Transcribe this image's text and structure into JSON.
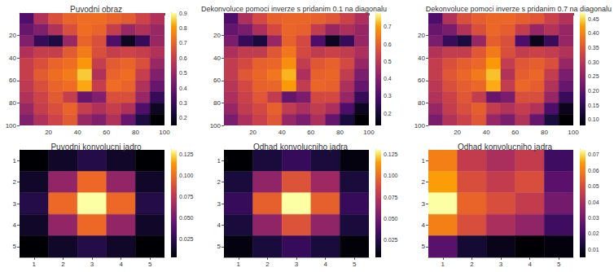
{
  "chart_data": [
    {
      "type": "heatmap",
      "title": "Puvodni obraz",
      "x": [
        5,
        15,
        25,
        35,
        45,
        55,
        65,
        75,
        85,
        95
      ],
      "y": [
        5,
        15,
        25,
        35,
        45,
        55,
        65,
        75,
        85,
        95
      ],
      "cells": [
        [
          0.35,
          0.55,
          0.65,
          0.7,
          0.72,
          0.72,
          0.7,
          0.68,
          0.62,
          0.55
        ],
        [
          0.4,
          0.45,
          0.55,
          0.65,
          0.72,
          0.7,
          0.6,
          0.5,
          0.55,
          0.5
        ],
        [
          0.45,
          0.3,
          0.25,
          0.5,
          0.7,
          0.65,
          0.35,
          0.2,
          0.3,
          0.5
        ],
        [
          0.55,
          0.6,
          0.6,
          0.68,
          0.75,
          0.65,
          0.6,
          0.62,
          0.6,
          0.55
        ],
        [
          0.6,
          0.65,
          0.7,
          0.72,
          0.8,
          0.6,
          0.68,
          0.7,
          0.65,
          0.5
        ],
        [
          0.6,
          0.68,
          0.72,
          0.75,
          0.85,
          0.55,
          0.7,
          0.72,
          0.6,
          0.45
        ],
        [
          0.58,
          0.65,
          0.7,
          0.72,
          0.82,
          0.6,
          0.72,
          0.7,
          0.55,
          0.4
        ],
        [
          0.55,
          0.62,
          0.68,
          0.6,
          0.4,
          0.45,
          0.65,
          0.65,
          0.5,
          0.3
        ],
        [
          0.5,
          0.6,
          0.65,
          0.7,
          0.6,
          0.55,
          0.6,
          0.55,
          0.35,
          0.2
        ],
        [
          0.45,
          0.55,
          0.62,
          0.68,
          0.5,
          0.45,
          0.55,
          0.4,
          0.25,
          0.15
        ]
      ],
      "xlim": [
        0,
        100
      ],
      "ylim": [
        0,
        100
      ],
      "xticks": [
        20,
        40,
        60,
        80,
        100
      ],
      "yticks": [
        20,
        40,
        60,
        80,
        100
      ],
      "clim": [
        0.15,
        0.9
      ],
      "cticks": [
        0.2,
        0.3,
        0.4,
        0.5,
        0.6,
        0.7,
        0.8,
        0.9
      ]
    },
    {
      "type": "heatmap",
      "title": "Dekonvoluce pomoci inverze s pridanim 0.1 na diagonalu",
      "x": [
        5,
        15,
        25,
        35,
        45,
        55,
        65,
        75,
        85,
        95
      ],
      "y": [
        5,
        15,
        25,
        35,
        45,
        55,
        65,
        75,
        85,
        95
      ],
      "cells": [
        [
          0.3,
          0.47,
          0.55,
          0.6,
          0.61,
          0.61,
          0.6,
          0.58,
          0.53,
          0.47
        ],
        [
          0.34,
          0.38,
          0.47,
          0.55,
          0.61,
          0.6,
          0.51,
          0.43,
          0.47,
          0.43
        ],
        [
          0.38,
          0.26,
          0.21,
          0.43,
          0.6,
          0.55,
          0.3,
          0.17,
          0.26,
          0.43
        ],
        [
          0.47,
          0.51,
          0.51,
          0.58,
          0.64,
          0.55,
          0.51,
          0.53,
          0.51,
          0.47
        ],
        [
          0.51,
          0.55,
          0.6,
          0.61,
          0.68,
          0.51,
          0.58,
          0.6,
          0.55,
          0.43
        ],
        [
          0.51,
          0.58,
          0.61,
          0.64,
          0.72,
          0.47,
          0.6,
          0.61,
          0.51,
          0.38
        ],
        [
          0.49,
          0.55,
          0.6,
          0.61,
          0.7,
          0.51,
          0.61,
          0.6,
          0.47,
          0.34
        ],
        [
          0.47,
          0.53,
          0.58,
          0.51,
          0.34,
          0.38,
          0.55,
          0.55,
          0.43,
          0.26
        ],
        [
          0.43,
          0.51,
          0.55,
          0.6,
          0.51,
          0.47,
          0.51,
          0.47,
          0.3,
          0.17
        ],
        [
          0.38,
          0.47,
          0.53,
          0.58,
          0.43,
          0.38,
          0.47,
          0.34,
          0.21,
          0.13
        ]
      ],
      "xlim": [
        0,
        100
      ],
      "ylim": [
        0,
        100
      ],
      "xticks": [
        20,
        40,
        60,
        80,
        100
      ],
      "yticks": [
        20,
        40,
        60,
        80,
        100
      ],
      "clim": [
        0.13,
        0.78
      ],
      "cticks": [
        0.2,
        0.3,
        0.4,
        0.5,
        0.6,
        0.7
      ]
    },
    {
      "type": "heatmap",
      "title": "Dekonvoluce pomoci inverze s pridanim 0.7 na diagonalu",
      "x": [
        5,
        15,
        25,
        35,
        45,
        55,
        65,
        75,
        85,
        95
      ],
      "y": [
        5,
        15,
        25,
        35,
        45,
        55,
        65,
        75,
        85,
        95
      ],
      "cells": [
        [
          0.18,
          0.29,
          0.34,
          0.36,
          0.37,
          0.37,
          0.36,
          0.35,
          0.32,
          0.29
        ],
        [
          0.21,
          0.23,
          0.29,
          0.34,
          0.37,
          0.36,
          0.31,
          0.26,
          0.29,
          0.26
        ],
        [
          0.23,
          0.16,
          0.13,
          0.26,
          0.36,
          0.34,
          0.18,
          0.1,
          0.16,
          0.26
        ],
        [
          0.29,
          0.31,
          0.31,
          0.35,
          0.39,
          0.34,
          0.31,
          0.32,
          0.31,
          0.29
        ],
        [
          0.31,
          0.34,
          0.36,
          0.37,
          0.42,
          0.31,
          0.35,
          0.36,
          0.34,
          0.26
        ],
        [
          0.31,
          0.35,
          0.37,
          0.39,
          0.44,
          0.29,
          0.36,
          0.37,
          0.31,
          0.23
        ],
        [
          0.3,
          0.34,
          0.36,
          0.37,
          0.43,
          0.31,
          0.37,
          0.36,
          0.29,
          0.21
        ],
        [
          0.29,
          0.32,
          0.35,
          0.31,
          0.21,
          0.23,
          0.34,
          0.34,
          0.26,
          0.16
        ],
        [
          0.26,
          0.31,
          0.34,
          0.36,
          0.31,
          0.29,
          0.31,
          0.29,
          0.18,
          0.1
        ],
        [
          0.23,
          0.29,
          0.32,
          0.35,
          0.26,
          0.23,
          0.29,
          0.21,
          0.13,
          0.08
        ]
      ],
      "xlim": [
        0,
        100
      ],
      "ylim": [
        0,
        100
      ],
      "xticks": [
        20,
        40,
        60,
        80,
        100
      ],
      "yticks": [
        20,
        40,
        60,
        80,
        100
      ],
      "clim": [
        0.08,
        0.47
      ],
      "cticks": [
        {
          "value": 0.1,
          "label": "0.10"
        },
        0.15,
        {
          "value": 0.2,
          "label": "0.20"
        },
        0.25,
        {
          "value": 0.3,
          "label": "0.30"
        },
        0.35,
        {
          "value": 0.4,
          "label": "0.40"
        },
        0.45
      ]
    },
    {
      "type": "heatmap",
      "title": "Puvodni konvolucni jadro",
      "x": [
        1,
        2,
        3,
        4,
        5
      ],
      "y": [
        1,
        2,
        3,
        4,
        5
      ],
      "cells": [
        [
          0.003,
          0.013,
          0.022,
          0.013,
          0.003
        ],
        [
          0.013,
          0.06,
          0.098,
          0.06,
          0.013
        ],
        [
          0.022,
          0.098,
          0.13,
          0.098,
          0.022
        ],
        [
          0.013,
          0.06,
          0.098,
          0.06,
          0.013
        ],
        [
          0.003,
          0.013,
          0.022,
          0.013,
          0.003
        ]
      ],
      "xlim": [
        0.5,
        5.5
      ],
      "ylim": [
        0.5,
        5.5
      ],
      "xticks": [
        1,
        2,
        3,
        4,
        5
      ],
      "yticks": [
        1,
        2,
        3,
        4,
        5
      ],
      "clim": [
        0.003,
        0.13
      ],
      "cticks": [
        0.025,
        {
          "value": 0.05,
          "label": "0.050"
        },
        0.075,
        {
          "value": 0.1,
          "label": "0.100"
        },
        0.125
      ]
    },
    {
      "type": "heatmap",
      "title": "Odhad konvolucniho jadra",
      "x": [
        1,
        2,
        3,
        4,
        5
      ],
      "y": [
        1,
        2,
        3,
        4,
        5
      ],
      "cells": [
        [
          0.005,
          0.02,
          0.03,
          0.02,
          0.008
        ],
        [
          0.02,
          0.06,
          0.09,
          0.065,
          0.02
        ],
        [
          0.03,
          0.095,
          0.13,
          0.095,
          0.03
        ],
        [
          0.02,
          0.06,
          0.09,
          0.06,
          0.02
        ],
        [
          0.008,
          0.02,
          0.03,
          0.02,
          0.006
        ]
      ],
      "xlim": [
        0.5,
        5.5
      ],
      "ylim": [
        0.5,
        5.5
      ],
      "xticks": [
        1,
        2,
        3,
        4,
        5
      ],
      "yticks": [
        1,
        2,
        3,
        4,
        5
      ],
      "clim": [
        0.005,
        0.13
      ],
      "cticks": [
        0.025,
        {
          "value": 0.05,
          "label": "0.050"
        },
        0.075,
        {
          "value": 0.1,
          "label": "0.100"
        },
        0.125
      ]
    },
    {
      "type": "heatmap",
      "title": "Odhad konvolucniho jadra",
      "x": [
        1,
        2,
        3,
        4,
        5
      ],
      "y": [
        1,
        2,
        3,
        4,
        5
      ],
      "cells": [
        [
          0.06,
          0.045,
          0.04,
          0.045,
          0.02
        ],
        [
          0.065,
          0.05,
          0.045,
          0.05,
          0.025
        ],
        [
          0.073,
          0.055,
          0.05,
          0.045,
          0.03
        ],
        [
          0.06,
          0.05,
          0.04,
          0.035,
          0.02
        ],
        [
          0.025,
          0.012,
          0.008,
          0.005,
          0.006
        ]
      ],
      "xlim": [
        0.5,
        5.5
      ],
      "ylim": [
        0.5,
        5.5
      ],
      "xticks": [
        1,
        2,
        3,
        4,
        5
      ],
      "yticks": [
        1,
        2,
        3,
        4,
        5
      ],
      "clim": [
        0.005,
        0.073
      ],
      "cticks": [
        0.01,
        0.02,
        0.03,
        0.04,
        0.05,
        0.06,
        0.07
      ]
    }
  ]
}
